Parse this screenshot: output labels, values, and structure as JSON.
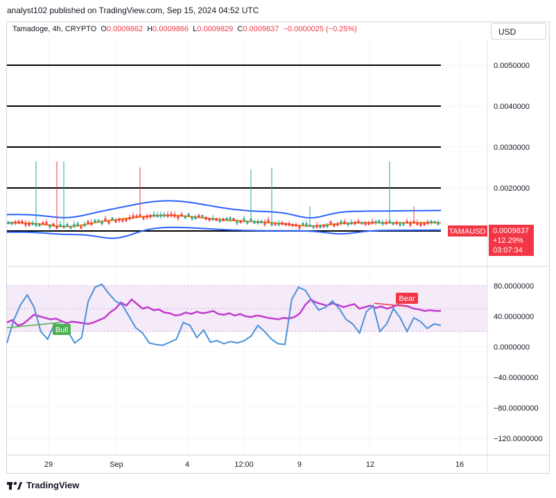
{
  "header": {
    "published": "analyst102 published on TradingView.com, Sep 15, 2024 04:52 UTC"
  },
  "ohlc": {
    "symbol": "Tamadoge, 4h, CRYPTO",
    "o_label": "O",
    "o": "0.0009862",
    "h_label": "H",
    "h": "0.0009866",
    "l_label": "L",
    "l": "0.0009829",
    "c_label": "C",
    "c": "0.0009837",
    "change": "−0.0000025 (−0.25%)"
  },
  "currency": "USD",
  "price_badge": {
    "ticker": "TAMAUSD",
    "price": "0.0009837",
    "change_pct": "+12.29%",
    "countdown": "03:07:34"
  },
  "footer": {
    "brand": "TradingView"
  },
  "colors": {
    "up": "#26a69a",
    "down": "#f23645",
    "bb": "#2962ff",
    "ma": "#f57c00",
    "rsi": "#c03ccf",
    "stoch": "#4a90d9"
  },
  "chart_data": [
    {
      "type": "candlestick",
      "title": "",
      "ylim": [
        0.0007,
        0.0057
      ],
      "y_ticks": [
        "0.0050000",
        "0.0040000",
        "0.0030000",
        "0.0020000"
      ],
      "x_ticks": [
        "29",
        "Sep",
        "4",
        "12:00",
        "9",
        "12",
        "16"
      ],
      "horizontal_levels": [
        0.005,
        0.004,
        0.003,
        0.002,
        0.00095
      ],
      "indicators": [
        "Bollinger Bands",
        "Moving Average"
      ],
      "last_price": 0.0009837
    },
    {
      "type": "line",
      "title": "",
      "ylim": [
        -135,
        88
      ],
      "y_ticks": [
        "80.0000000",
        "40.0000000",
        "0.0000000",
        "−40.0000000",
        "−80.0000000",
        "−120.0000000"
      ],
      "band": [
        20,
        80
      ],
      "annotations": [
        "Bull",
        "Bear"
      ],
      "series": [
        {
          "values": [
            32,
            35,
            28,
            30,
            36,
            42,
            40,
            38,
            36,
            37,
            34,
            31,
            33,
            32,
            31,
            30,
            32,
            35,
            38,
            45,
            50,
            58,
            54,
            62,
            56,
            50,
            52,
            48,
            49,
            45,
            44,
            41,
            42,
            45,
            43,
            46,
            44,
            45,
            47,
            43,
            42,
            44,
            41,
            43,
            40,
            39,
            41,
            40,
            38,
            37,
            36,
            38,
            37,
            39,
            44,
            55,
            62,
            58,
            56,
            54,
            57,
            55,
            52,
            54,
            56,
            50,
            52,
            54,
            51,
            53,
            50,
            52,
            55,
            54,
            53,
            50,
            49,
            47,
            48,
            47,
            47
          ]
        },
        {
          "values": [
            5,
            35,
            55,
            68,
            52,
            20,
            10,
            30,
            28,
            20,
            5,
            12,
            60,
            78,
            82,
            70,
            60,
            55,
            40,
            25,
            18,
            5,
            3,
            2,
            6,
            10,
            32,
            28,
            12,
            22,
            6,
            8,
            4,
            7,
            5,
            8,
            14,
            28,
            20,
            10,
            4,
            3,
            62,
            78,
            74,
            60,
            48,
            52,
            60,
            50,
            36,
            30,
            18,
            46,
            54,
            20,
            30,
            50,
            38,
            20,
            38,
            33,
            24,
            30,
            28
          ]
        }
      ]
    }
  ]
}
